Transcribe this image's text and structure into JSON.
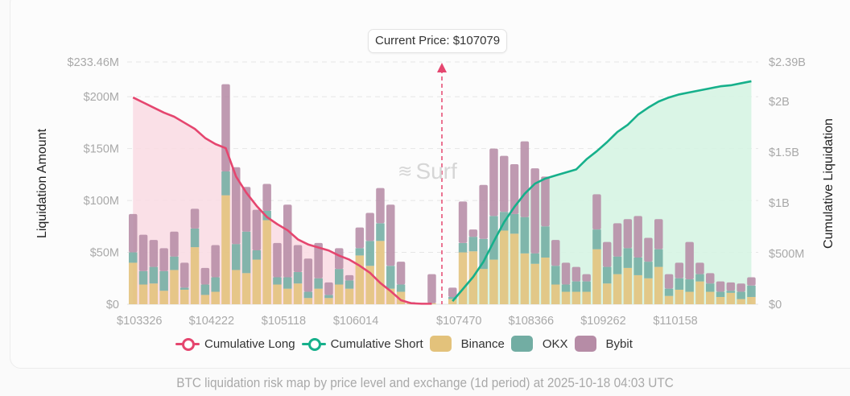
{
  "chart_data": {
    "type": "bar",
    "subtype": "stacked-bar-with-cumulative-lines",
    "title": "BTC liquidation risk map by price level and exchange (1d period) at 2025-10-18 04:03 UTC",
    "current_price_label": "Current Price: $107079",
    "current_price": 107079,
    "watermark": "Surf",
    "ylabel": "Liquidation Amount",
    "ylabel_right": "Cumulative Liquidation",
    "ylim": [
      0,
      233.46
    ],
    "ylim_right": [
      0,
      2390
    ],
    "yticks": [
      "$0",
      "$50M",
      "$100M",
      "$150M",
      "$200M",
      "$233.46M"
    ],
    "yticks_values": [
      0,
      50,
      100,
      150,
      200,
      233.46
    ],
    "yticks_right": [
      "$0",
      "$500M",
      "$1B",
      "$1.5B",
      "$2B",
      "$2.39B"
    ],
    "yticks_right_values": [
      0,
      500,
      1000,
      1500,
      2000,
      2390
    ],
    "xticks": [
      "$103326",
      "$104222",
      "$105118",
      "$106014",
      "$107470",
      "$108366",
      "$109262",
      "$110158"
    ],
    "xticks_index": [
      0,
      7,
      14,
      21,
      31,
      38,
      45,
      52
    ],
    "grid": true,
    "legend_position": "bottom-center",
    "legend": [
      {
        "name": "Cumulative Long",
        "kind": "line",
        "color": "#e5466f"
      },
      {
        "name": "Cumulative Short",
        "kind": "line",
        "color": "#16b08b"
      },
      {
        "name": "Binance",
        "kind": "bar",
        "color": "#e3c27b"
      },
      {
        "name": "OKX",
        "kind": "bar",
        "color": "#72ada3"
      },
      {
        "name": "Bybit",
        "kind": "bar",
        "color": "#b68ca6"
      }
    ],
    "units": "USD millions",
    "long_side": {
      "binance": [
        40,
        19,
        20,
        13,
        33,
        14,
        55,
        9,
        12,
        105,
        33,
        30,
        43,
        81,
        19,
        15,
        20,
        6,
        15,
        6,
        19,
        15,
        47,
        37,
        61,
        15,
        12,
        1,
        0.5,
        1
      ],
      "okx": [
        10,
        13,
        16,
        19,
        13,
        2,
        18,
        10,
        14,
        23,
        25,
        40,
        9,
        9,
        7,
        11,
        11,
        6,
        10,
        3,
        15,
        8,
        7,
        24,
        17,
        22,
        7,
        0.5,
        0.3,
        0
      ],
      "bybit": [
        37,
        35,
        26,
        22,
        24,
        24,
        19,
        16,
        31,
        84,
        74,
        43,
        39,
        26,
        33,
        70,
        26,
        32,
        34,
        12,
        20,
        5,
        20,
        27,
        34,
        59,
        22,
        0.5,
        0.2,
        28
      ],
      "cumulative": [
        2040,
        1990,
        1940,
        1890,
        1850,
        1790,
        1730,
        1640,
        1580,
        1540,
        1260,
        1100,
        970,
        860,
        790,
        730,
        640,
        590,
        560,
        530,
        480,
        440,
        380,
        310,
        210,
        130,
        40,
        10,
        5,
        5
      ]
    },
    "short_side": {
      "binance": [
        5,
        50,
        51,
        34,
        43,
        71,
        68,
        49,
        39,
        45,
        19,
        12,
        12,
        12,
        53,
        20,
        29,
        35,
        28,
        25,
        36,
        8,
        14,
        12,
        22,
        12,
        7,
        11,
        5,
        7
      ],
      "okx": [
        2,
        9,
        14,
        29,
        42,
        18,
        19,
        35,
        10,
        30,
        18,
        7,
        10,
        10,
        19,
        16,
        17,
        19,
        17,
        16,
        17,
        7,
        11,
        12,
        7,
        8,
        5,
        2,
        7,
        11
      ],
      "bybit": [
        9,
        40,
        7,
        52,
        65,
        54,
        48,
        73,
        82,
        48,
        25,
        21,
        14,
        7,
        34,
        24,
        32,
        28,
        40,
        23,
        29,
        14,
        15,
        36,
        11,
        10,
        10,
        8,
        8,
        8
      ],
      "cumulative": [
        30,
        150,
        270,
        420,
        620,
        810,
        960,
        1090,
        1190,
        1240,
        1270,
        1300,
        1330,
        1430,
        1510,
        1600,
        1700,
        1770,
        1870,
        1940,
        2000,
        2040,
        2070,
        2090,
        2110,
        2130,
        2150,
        2160,
        2180,
        2200
      ]
    }
  },
  "colors": {
    "long_line": "#e5466f",
    "long_fill": "#f9dbe3",
    "short_line": "#16b08b",
    "short_fill": "#d6f4e3",
    "binance": "#e3c27b",
    "okx": "#72ada3",
    "bybit": "#b68ca6",
    "grid": "#e6e6e6",
    "tick_text": "#a9a9a9"
  },
  "footer": "BTC liquidation risk map by price level and exchange (1d period) at 2025-10-18 04:03 UTC"
}
